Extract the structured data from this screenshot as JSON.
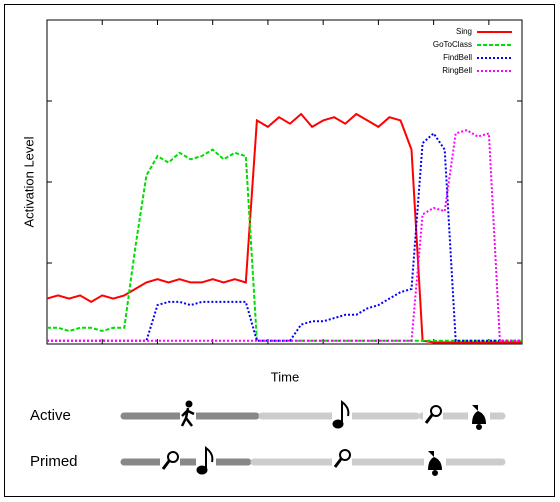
{
  "chart_data": {
    "type": "line",
    "y_label": "Activation Level",
    "x_label": "Time",
    "xlim": [
      0,
      86
    ],
    "ylim": [
      0,
      1
    ],
    "xticks": [
      10,
      20,
      30,
      40,
      50,
      60,
      70,
      80
    ],
    "yticks": [
      0.25,
      0.5,
      0.75
    ],
    "legend": "top-right",
    "x": [
      0,
      2,
      4,
      6,
      8,
      10,
      12,
      14,
      16,
      18,
      20,
      22,
      24,
      26,
      28,
      30,
      32,
      34,
      36,
      38,
      40,
      42,
      44,
      46,
      48,
      50,
      52,
      54,
      56,
      58,
      60,
      62,
      64,
      66,
      68,
      70,
      72,
      74,
      76,
      78,
      80,
      82,
      84,
      86
    ],
    "series": [
      {
        "name": "Sing",
        "color": "#ff0000",
        "dash": "none",
        "values": [
          0.14,
          0.15,
          0.14,
          0.15,
          0.13,
          0.15,
          0.14,
          0.15,
          0.17,
          0.19,
          0.2,
          0.19,
          0.2,
          0.19,
          0.19,
          0.2,
          0.19,
          0.2,
          0.19,
          0.69,
          0.67,
          0.7,
          0.68,
          0.71,
          0.67,
          0.69,
          0.7,
          0.68,
          0.71,
          0.69,
          0.67,
          0.7,
          0.69,
          0.6,
          0.01,
          0.005,
          0.005,
          0.005,
          0.005,
          0.005,
          0.005,
          0.005,
          0.005,
          0.005
        ]
      },
      {
        "name": "GoToClass",
        "color": "#00dd00",
        "dash": "4 2",
        "values": [
          0.05,
          0.05,
          0.04,
          0.05,
          0.05,
          0.04,
          0.05,
          0.05,
          0.3,
          0.52,
          0.58,
          0.56,
          0.59,
          0.57,
          0.58,
          0.6,
          0.57,
          0.59,
          0.58,
          0.01,
          0.01,
          0.01,
          0.01,
          0.01,
          0.01,
          0.01,
          0.01,
          0.01,
          0.01,
          0.01,
          0.01,
          0.01,
          0.01,
          0.01,
          0.01,
          0.01,
          0.01,
          0.01,
          0.01,
          0.01,
          0.01,
          0.01,
          0.01,
          0.01
        ]
      },
      {
        "name": "FindBell",
        "color": "#0000ff",
        "dash": "2 2",
        "values": [
          0.01,
          0.01,
          0.01,
          0.01,
          0.01,
          0.01,
          0.01,
          0.01,
          0.01,
          0.01,
          0.12,
          0.13,
          0.13,
          0.12,
          0.13,
          0.13,
          0.13,
          0.13,
          0.13,
          0.01,
          0.01,
          0.01,
          0.01,
          0.06,
          0.07,
          0.07,
          0.08,
          0.09,
          0.09,
          0.11,
          0.12,
          0.14,
          0.16,
          0.17,
          0.62,
          0.65,
          0.6,
          0.01,
          0.01,
          0.01,
          0.01,
          0.01,
          0.01,
          0.01
        ]
      },
      {
        "name": "RingBell",
        "color": "#ff00ff",
        "dash": "2 2",
        "values": [
          0.01,
          0.01,
          0.01,
          0.01,
          0.01,
          0.01,
          0.01,
          0.01,
          0.01,
          0.01,
          0.01,
          0.01,
          0.01,
          0.01,
          0.01,
          0.01,
          0.01,
          0.01,
          0.01,
          0.01,
          0.01,
          0.01,
          0.01,
          0.01,
          0.01,
          0.01,
          0.01,
          0.01,
          0.01,
          0.01,
          0.01,
          0.01,
          0.01,
          0.01,
          0.4,
          0.42,
          0.41,
          0.65,
          0.66,
          0.64,
          0.65,
          0.01,
          0.01,
          0.01
        ]
      }
    ]
  },
  "timeline": {
    "rows": [
      "Active",
      "Primed"
    ]
  }
}
